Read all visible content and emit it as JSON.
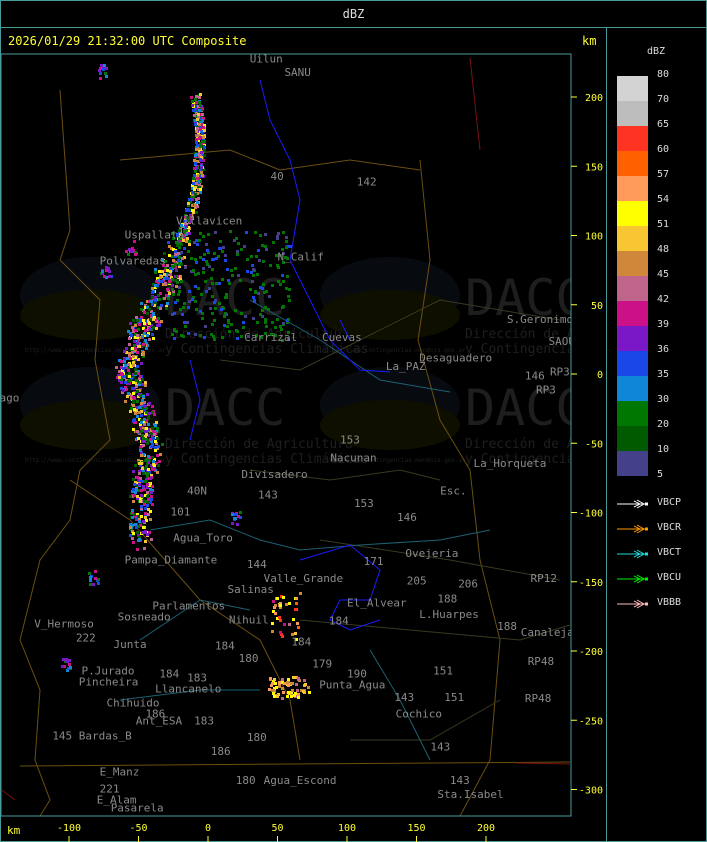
{
  "header": {
    "title": "dBZ"
  },
  "map": {
    "title": "2026/01/29 21:32:00 UTC Composite",
    "unit_top": "km",
    "unit_bottom": "km",
    "x_ticks": [
      -100,
      -50,
      0,
      50,
      100,
      150,
      200
    ],
    "y_ticks": [
      200,
      150,
      100,
      50,
      0,
      -50,
      -100,
      -150,
      -200,
      -250,
      -300
    ],
    "x_range_km": [
      -150,
      262
    ],
    "y_range_km": [
      231,
      -319
    ],
    "watermark": {
      "logo": "DACC",
      "line1": "Dirección de Agricultura",
      "line2": "y Contingencias Climáticas",
      "url": "http://www.contingencias.mendoza.gov.ar"
    },
    "places": [
      {
        "name": "Uilun",
        "x": 30,
        "y": 225
      },
      {
        "name": "SANU",
        "x": 55,
        "y": 215
      },
      {
        "name": "142",
        "x": 107,
        "y": 136
      },
      {
        "name": "40",
        "x": 45,
        "y": 140
      },
      {
        "name": "N_Calif",
        "x": 50,
        "y": 82
      },
      {
        "name": "Villavicen",
        "x": -23,
        "y": 108
      },
      {
        "name": "Uspallata",
        "x": -60,
        "y": 98
      },
      {
        "name": "Polvaredas",
        "x": -78,
        "y": 79
      },
      {
        "name": "Carrizal",
        "x": 26,
        "y": 24
      },
      {
        "name": "Cuevas",
        "x": 82,
        "y": 24
      },
      {
        "name": "La_PAZ",
        "x": 128,
        "y": 3
      },
      {
        "name": "Desaguadero",
        "x": 152,
        "y": 9
      },
      {
        "name": "S.Geronimo",
        "x": 215,
        "y": 37
      },
      {
        "name": "SAOU",
        "x": 245,
        "y": 21
      },
      {
        "name": "146",
        "x": 228,
        "y": -4
      },
      {
        "name": "RP3",
        "x": 246,
        "y": -1
      },
      {
        "name": "RP3",
        "x": 236,
        "y": -14
      },
      {
        "name": "ago",
        "x": -150,
        "y": -20
      },
      {
        "name": "153",
        "x": 95,
        "y": -50
      },
      {
        "name": "Nacunan",
        "x": 88,
        "y": -63
      },
      {
        "name": "La_Horqueta",
        "x": 191,
        "y": -67
      },
      {
        "name": "Esc.",
        "x": 167,
        "y": -87
      },
      {
        "name": "Divisadero",
        "x": 24,
        "y": -75
      },
      {
        "name": "143",
        "x": 36,
        "y": -90
      },
      {
        "name": "40N",
        "x": -15,
        "y": -87
      },
      {
        "name": "101",
        "x": -27,
        "y": -102
      },
      {
        "name": "153",
        "x": 105,
        "y": -96
      },
      {
        "name": "146",
        "x": 136,
        "y": -106
      },
      {
        "name": "Agua_Toro",
        "x": -25,
        "y": -121
      },
      {
        "name": "Pampa_Diamante",
        "x": -60,
        "y": -137
      },
      {
        "name": "171",
        "x": 112,
        "y": -138
      },
      {
        "name": "Ovejeria",
        "x": 142,
        "y": -132
      },
      {
        "name": "205",
        "x": 143,
        "y": -152
      },
      {
        "name": "206",
        "x": 180,
        "y": -154
      },
      {
        "name": "RP12",
        "x": 232,
        "y": -150
      },
      {
        "name": "Valle_Grande",
        "x": 40,
        "y": -150
      },
      {
        "name": "144",
        "x": 28,
        "y": -140
      },
      {
        "name": "Salinas",
        "x": 14,
        "y": -158
      },
      {
        "name": "Parlamentos",
        "x": -40,
        "y": -170
      },
      {
        "name": "Sosneado",
        "x": -65,
        "y": -178
      },
      {
        "name": "Nihuil",
        "x": 15,
        "y": -180
      },
      {
        "name": "El_Alvear",
        "x": 100,
        "y": -168
      },
      {
        "name": "L.Huarpes",
        "x": 152,
        "y": -176
      },
      {
        "name": "188",
        "x": 165,
        "y": -165
      },
      {
        "name": "188",
        "x": 208,
        "y": -185
      },
      {
        "name": "Canalejas",
        "x": 225,
        "y": -189
      },
      {
        "name": "V_Hermoso",
        "x": -125,
        "y": -183
      },
      {
        "name": "222",
        "x": -95,
        "y": -193
      },
      {
        "name": "Junta",
        "x": -68,
        "y": -198
      },
      {
        "name": "184",
        "x": 5,
        "y": -199
      },
      {
        "name": "184",
        "x": 60,
        "y": -196
      },
      {
        "name": "184",
        "x": 87,
        "y": -181
      },
      {
        "name": "180",
        "x": 22,
        "y": -208
      },
      {
        "name": "P.Jurado",
        "x": -91,
        "y": -217
      },
      {
        "name": "Pincheira",
        "x": -93,
        "y": -225
      },
      {
        "name": "184",
        "x": -35,
        "y": -219
      },
      {
        "name": "183",
        "x": -15,
        "y": -222
      },
      {
        "name": "Llancanelo",
        "x": -38,
        "y": -230
      },
      {
        "name": "179",
        "x": 75,
        "y": -212
      },
      {
        "name": "190",
        "x": 100,
        "y": -219
      },
      {
        "name": "Punta_Agua",
        "x": 80,
        "y": -227
      },
      {
        "name": "151",
        "x": 162,
        "y": -217
      },
      {
        "name": "151",
        "x": 170,
        "y": -236
      },
      {
        "name": "RP48",
        "x": 230,
        "y": -210
      },
      {
        "name": "RP48",
        "x": 228,
        "y": -237
      },
      {
        "name": "Chihuido",
        "x": -73,
        "y": -240
      },
      {
        "name": "186",
        "x": -45,
        "y": -248
      },
      {
        "name": "Ant_ESA",
        "x": -52,
        "y": -253
      },
      {
        "name": "183",
        "x": -10,
        "y": -253
      },
      {
        "name": "143",
        "x": 134,
        "y": -236
      },
      {
        "name": "Cochico",
        "x": 135,
        "y": -248
      },
      {
        "name": "145",
        "x": -112,
        "y": -264
      },
      {
        "name": "Bardas_B",
        "x": -93,
        "y": -264
      },
      {
        "name": "180",
        "x": 28,
        "y": -265
      },
      {
        "name": "186",
        "x": 2,
        "y": -275
      },
      {
        "name": "143",
        "x": 160,
        "y": -272
      },
      {
        "name": "E_Manz",
        "x": -78,
        "y": -290
      },
      {
        "name": "180",
        "x": 20,
        "y": -296
      },
      {
        "name": "Agua_Escond",
        "x": 40,
        "y": -296
      },
      {
        "name": "143",
        "x": 174,
        "y": -296
      },
      {
        "name": "221",
        "x": -78,
        "y": -302
      },
      {
        "name": "E_Alam",
        "x": -80,
        "y": -310
      },
      {
        "name": "Sta.Isabel",
        "x": 165,
        "y": -306
      },
      {
        "name": "Pasarela",
        "x": -70,
        "y": -316
      }
    ]
  },
  "legend": {
    "title": "dBZ",
    "scale": [
      {
        "label": "80",
        "color": "#d3d3d3"
      },
      {
        "label": "70",
        "color": "#bdbdbd"
      },
      {
        "label": "65",
        "color": "#ff3322"
      },
      {
        "label": "60",
        "color": "#ff6000"
      },
      {
        "label": "57",
        "color": "#ff9a5a"
      },
      {
        "label": "54",
        "color": "#ffff00"
      },
      {
        "label": "51",
        "color": "#f8c630"
      },
      {
        "label": "48",
        "color": "#cf883a"
      },
      {
        "label": "45",
        "color": "#bf648a"
      },
      {
        "label": "42",
        "color": "#cc1188"
      },
      {
        "label": "39",
        "color": "#7a18c8"
      },
      {
        "label": "36",
        "color": "#1a48e8"
      },
      {
        "label": "35",
        "color": "#0f86d8"
      },
      {
        "label": "30",
        "color": "#007700"
      },
      {
        "label": "20",
        "color": "#005a00"
      },
      {
        "label": "10",
        "color": "#45408a"
      }
    ],
    "bottom_label": "5",
    "radars": [
      {
        "name": "VBCP",
        "color": "#ffffff"
      },
      {
        "name": "VBCR",
        "color": "#ff9900"
      },
      {
        "name": "VBCT",
        "color": "#22dddd"
      },
      {
        "name": "VBCU",
        "color": "#00ee00"
      },
      {
        "name": "VBBB",
        "color": "#ffbbbb"
      }
    ]
  }
}
